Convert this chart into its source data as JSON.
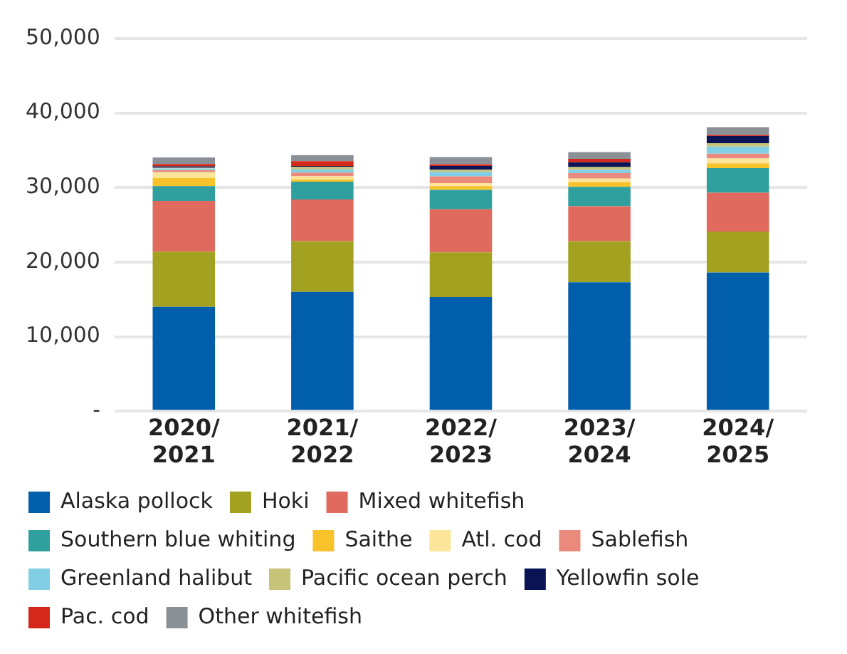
{
  "chart_data": {
    "type": "bar",
    "stacked": true,
    "categories": [
      "2020/2021",
      "2021/2022",
      "2022/2023",
      "2023/2024",
      "2024/2025"
    ],
    "series": [
      {
        "name": "Alaska pollock",
        "color": "#005eaa",
        "values": [
          14000,
          16000,
          15300,
          17300,
          18600
        ]
      },
      {
        "name": "Hoki",
        "color": "#a2a120",
        "values": [
          7400,
          6800,
          6000,
          5500,
          5500
        ]
      },
      {
        "name": "Mixed whitefish",
        "color": "#e06a5e",
        "values": [
          6800,
          5600,
          5800,
          4700,
          5200
        ]
      },
      {
        "name": "Southern blue whiting",
        "color": "#30a09f",
        "values": [
          2000,
          2400,
          2600,
          2600,
          3300
        ]
      },
      {
        "name": "Saithe",
        "color": "#f7c22a",
        "values": [
          1100,
          300,
          500,
          650,
          650
        ]
      },
      {
        "name": "Atl. cod",
        "color": "#fde59a",
        "values": [
          750,
          400,
          400,
          450,
          650
        ]
      },
      {
        "name": "Sablefish",
        "color": "#e98a7c",
        "values": [
          300,
          500,
          900,
          750,
          650
        ]
      },
      {
        "name": "Greenland halibut",
        "color": "#82cfe5",
        "values": [
          200,
          450,
          600,
          450,
          950
        ]
      },
      {
        "name": "Pacific ocean perch",
        "color": "#c7c47a",
        "values": [
          100,
          350,
          300,
          350,
          450
        ]
      },
      {
        "name": "Yellowfin sole",
        "color": "#0a1454",
        "values": [
          200,
          100,
          500,
          650,
          950
        ]
      },
      {
        "name": "Pac. cod",
        "color": "#d5281b",
        "values": [
          300,
          650,
          200,
          450,
          150
        ]
      },
      {
        "name": "Other whitefish",
        "color": "#8b8f96",
        "values": [
          900,
          800,
          1000,
          900,
          1050
        ]
      }
    ],
    "ylim": [
      0,
      50000
    ],
    "yticks": [
      {
        "value": 0,
        "label": "-"
      },
      {
        "value": 10000,
        "label": "10,000"
      },
      {
        "value": 20000,
        "label": "20,000"
      },
      {
        "value": 30000,
        "label": "30,000"
      },
      {
        "value": 40000,
        "label": "40,000"
      },
      {
        "value": 50000,
        "label": "50,000"
      }
    ],
    "grid": "y",
    "legend": "bottom"
  }
}
